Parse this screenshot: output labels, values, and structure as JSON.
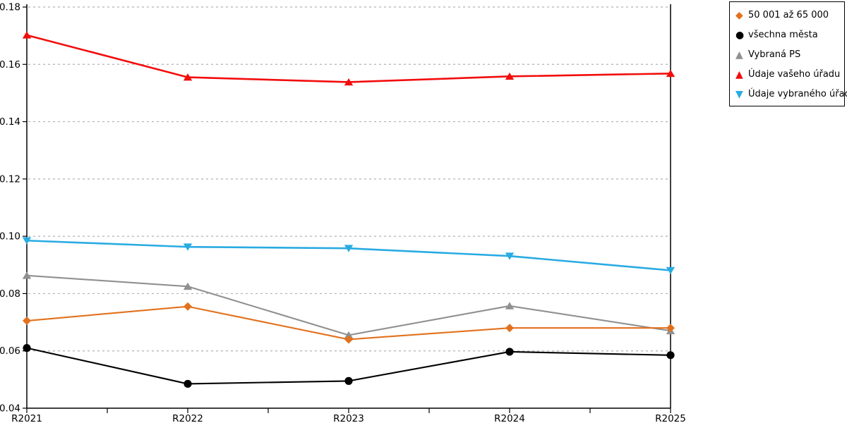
{
  "chart_data": {
    "type": "line",
    "title": "",
    "xlabel": "",
    "ylabel": "",
    "categories": [
      "R2021",
      "R2022",
      "R2023",
      "R2024",
      "R2025"
    ],
    "series": [
      {
        "name": "50 001 až 65 000",
        "marker": "diamond",
        "color": "#E2711D",
        "values": [
          0.0705,
          0.0755,
          0.064,
          0.068,
          0.068
        ]
      },
      {
        "name": "všechna města",
        "marker": "circle",
        "color": "#000000",
        "values": [
          0.061,
          0.0485,
          0.0495,
          0.0597,
          0.0585
        ]
      },
      {
        "name": "Vybraná PS",
        "marker": "triangle-up",
        "color": "#909090",
        "values": [
          0.0863,
          0.0825,
          0.0655,
          0.0757,
          0.067
        ]
      },
      {
        "name": "Údaje vašeho úřadu",
        "marker": "triangle-up",
        "color": "#F20D0D",
        "values": [
          0.1702,
          0.1555,
          0.1538,
          0.1558,
          0.1568
        ]
      },
      {
        "name": "Údaje vybraného úřadu",
        "marker": "triangle-down",
        "color": "#29ABE2",
        "values": [
          0.0985,
          0.0963,
          0.0958,
          0.0931,
          0.0881
        ]
      }
    ],
    "ylim": [
      0.04,
      0.18
    ],
    "ytick_values": [
      0.18,
      0.16,
      0.14,
      0.12,
      0.1,
      0.08,
      0.06,
      0.04
    ],
    "ytick_labels": [
      "0.18",
      "0.16",
      "0.14",
      "0.12",
      "0.10",
      "0.08",
      "0.06",
      "0.04"
    ],
    "grid": "horizontal dashed gray",
    "legend_position": "outside top-right"
  }
}
